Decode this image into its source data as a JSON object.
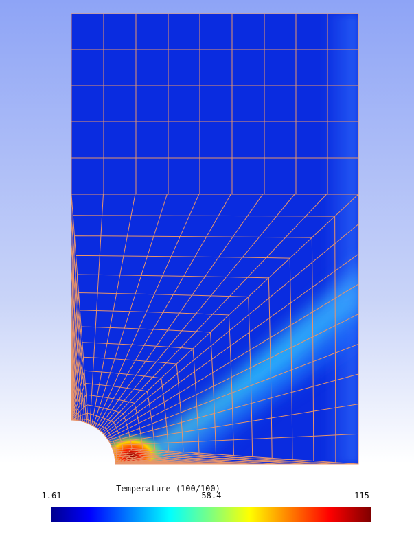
{
  "colorbar": {
    "title": "Temperature (100/100)",
    "lim": [
      1.61,
      115
    ],
    "ticks": [
      1.61,
      58.4,
      115
    ]
  }
}
